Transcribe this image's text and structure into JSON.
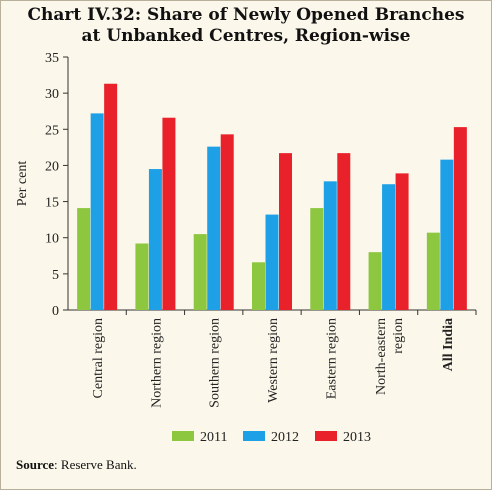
{
  "title_line1": "Chart IV.32: Share of Newly Opened Branches",
  "title_line2": "at Unbanked Centres, Region-wise",
  "source_label": "Source",
  "source_text": ": Reserve Bank.",
  "chart_data": {
    "type": "bar",
    "categories": [
      "Central region",
      "Northern region",
      "Southern region",
      "Western region",
      "Eastern region",
      "North-eastern region",
      "All India"
    ],
    "category_lines": [
      [
        "Central region"
      ],
      [
        "Northern region"
      ],
      [
        "Southern region"
      ],
      [
        "Western region"
      ],
      [
        "Eastern region"
      ],
      [
        "North-eastern",
        "region"
      ],
      [
        "All India"
      ]
    ],
    "bold_categories": [
      "All India"
    ],
    "series": [
      {
        "name": "2011",
        "color": "#8dc63f",
        "values": [
          14.1,
          9.2,
          10.5,
          6.6,
          14.1,
          8.0,
          10.7
        ]
      },
      {
        "name": "2012",
        "color": "#1ea0e6",
        "values": [
          27.2,
          19.5,
          22.6,
          13.2,
          17.8,
          17.4,
          20.8
        ]
      },
      {
        "name": "2013",
        "color": "#e8212a",
        "values": [
          31.3,
          26.6,
          24.3,
          21.7,
          21.7,
          18.9,
          25.3
        ]
      }
    ],
    "ylabel": "Per cent",
    "ylim": [
      0,
      35
    ],
    "yticks": [
      0,
      5,
      10,
      15,
      20,
      25,
      30,
      35
    ],
    "grid": false,
    "legend_position": "bottom"
  }
}
